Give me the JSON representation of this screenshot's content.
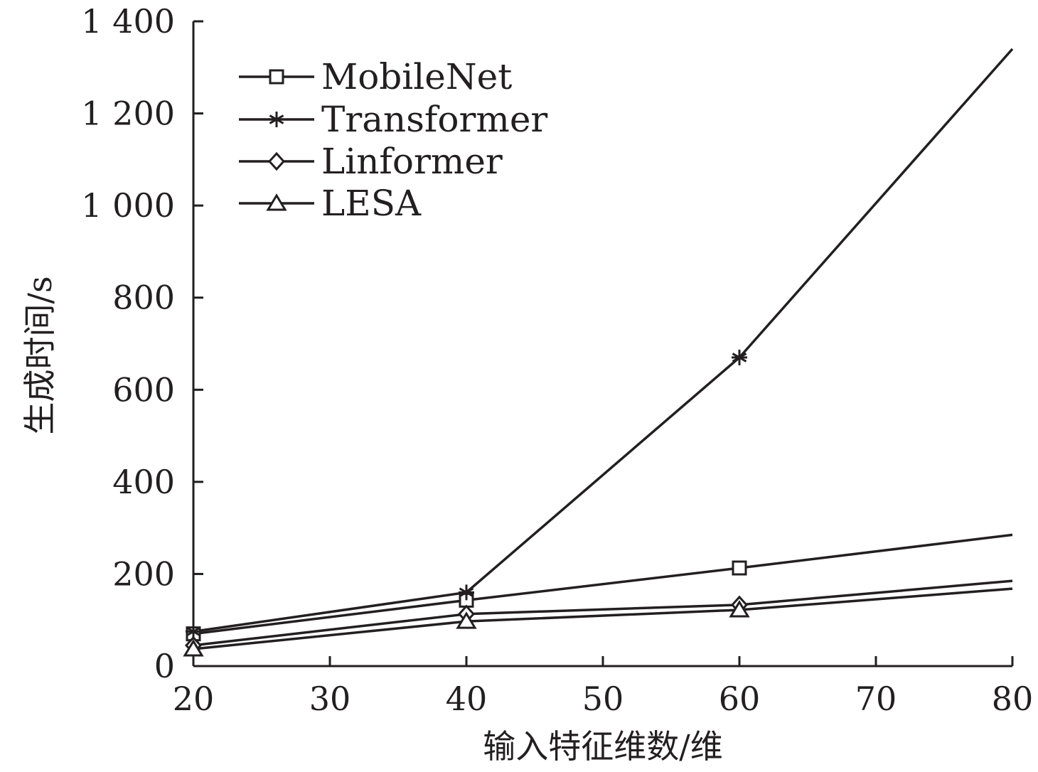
{
  "chart_data": {
    "type": "line",
    "title": "",
    "xlabel": "输入特征维数/维",
    "ylabel": "生成时间/s",
    "xlim": [
      20,
      80
    ],
    "ylim": [
      0,
      1400
    ],
    "x_ticks": [
      20,
      30,
      40,
      50,
      60,
      70,
      80
    ],
    "x_tick_labels": [
      "20",
      "30",
      "40",
      "50",
      "60",
      "70",
      "80"
    ],
    "y_ticks": [
      0,
      200,
      400,
      600,
      800,
      1000,
      1200,
      1400
    ],
    "y_tick_labels": [
      "0",
      "200",
      "400",
      "600",
      "800",
      "1 000",
      "1 200",
      "1 400"
    ],
    "grid": false,
    "legend_position": "top-left",
    "series": [
      {
        "name": "MobileNet",
        "marker": "square",
        "x": [
          20,
          40,
          60,
          80
        ],
        "y": [
          70,
          143,
          213,
          285
        ]
      },
      {
        "name": "Transformer",
        "marker": "star",
        "x": [
          20,
          40,
          60,
          80
        ],
        "y": [
          75,
          160,
          670,
          1340
        ]
      },
      {
        "name": "Linformer",
        "marker": "diamond",
        "x": [
          20,
          40,
          60,
          80
        ],
        "y": [
          45,
          113,
          133,
          185
        ]
      },
      {
        "name": "LESA",
        "marker": "triangle",
        "x": [
          20,
          40,
          60,
          80
        ],
        "y": [
          37,
          97,
          122,
          168
        ]
      }
    ],
    "colors": {
      "ink": "#231f20",
      "background": "#ffffff"
    }
  }
}
